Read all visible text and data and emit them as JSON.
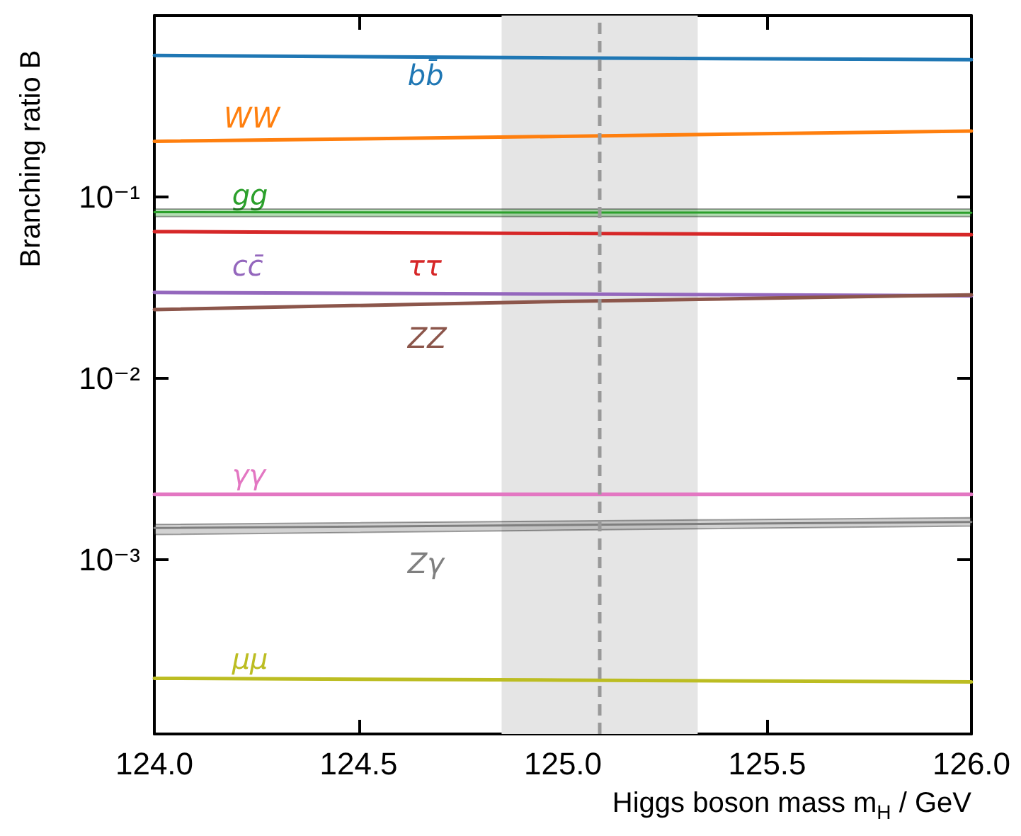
{
  "chart_data": {
    "type": "line",
    "xlabel": "Higgs boson mass m$_{H}$ / GeV",
    "ylabel": "Branching ratio B",
    "x": [
      124.0,
      125.0,
      126.0
    ],
    "series": [
      {
        "name": "bb̄",
        "color": "#1f77b4",
        "values": [
          0.603,
          0.585,
          0.571
        ]
      },
      {
        "name": "WW",
        "color": "#ff7f0e",
        "values": [
          0.203,
          0.216,
          0.231
        ]
      },
      {
        "name": "gg",
        "color": "#2ca02c",
        "values": [
          0.0825,
          0.0822,
          0.082
        ],
        "lower": [
          0.078,
          0.078,
          0.078
        ],
        "upper": [
          0.086,
          0.086,
          0.086
        ]
      },
      {
        "name": "ττ",
        "color": "#d62728",
        "values": [
          0.0645,
          0.063,
          0.062
        ]
      },
      {
        "name": "cc̄",
        "color": "#9467bd",
        "values": [
          0.0298,
          0.0292,
          0.0286
        ]
      },
      {
        "name": "ZZ",
        "color": "#8c564b",
        "values": [
          0.024,
          0.0266,
          0.0289
        ]
      },
      {
        "name": "γγ",
        "color": "#e377c2",
        "values": [
          0.0023,
          0.0023,
          0.0023
        ]
      },
      {
        "name": "Zγ",
        "color": "#7f7f7f",
        "values": [
          0.0015,
          0.00156,
          0.00162
        ],
        "lower": [
          0.00138,
          0.00146,
          0.00154
        ],
        "upper": [
          0.00157,
          0.00164,
          0.00171
        ]
      },
      {
        "name": "μμ",
        "color": "#bcbd22",
        "values": [
          0.000223,
          0.000218,
          0.000213
        ]
      }
    ],
    "xlim": [
      124.0,
      126.0
    ],
    "xticks": [
      {
        "value": 124.0,
        "label": "124.0"
      },
      {
        "value": 124.5,
        "label": "124.5"
      },
      {
        "value": 125.0,
        "label": "125.0"
      },
      {
        "value": 125.5,
        "label": "125.5"
      },
      {
        "value": 126.0,
        "label": "126.0"
      }
    ],
    "ylim": [
      0.00011,
      1
    ],
    "yticks": [
      {
        "value": 0.001,
        "label": "10⁻³"
      },
      {
        "value": 0.01,
        "label": "10⁻²"
      },
      {
        "value": 0.1,
        "label": "10⁻¹"
      }
    ],
    "log": "y",
    "ref_lines": [
      {
        "axis": "x",
        "value": 125.09,
        "color": "#999999",
        "line_style": "dashed"
      }
    ],
    "bands": [
      {
        "axis": "x",
        "from": 124.85,
        "to": 125.33,
        "color": "#e5e5e5"
      }
    ],
    "marker": "none",
    "line_style": "solid"
  }
}
